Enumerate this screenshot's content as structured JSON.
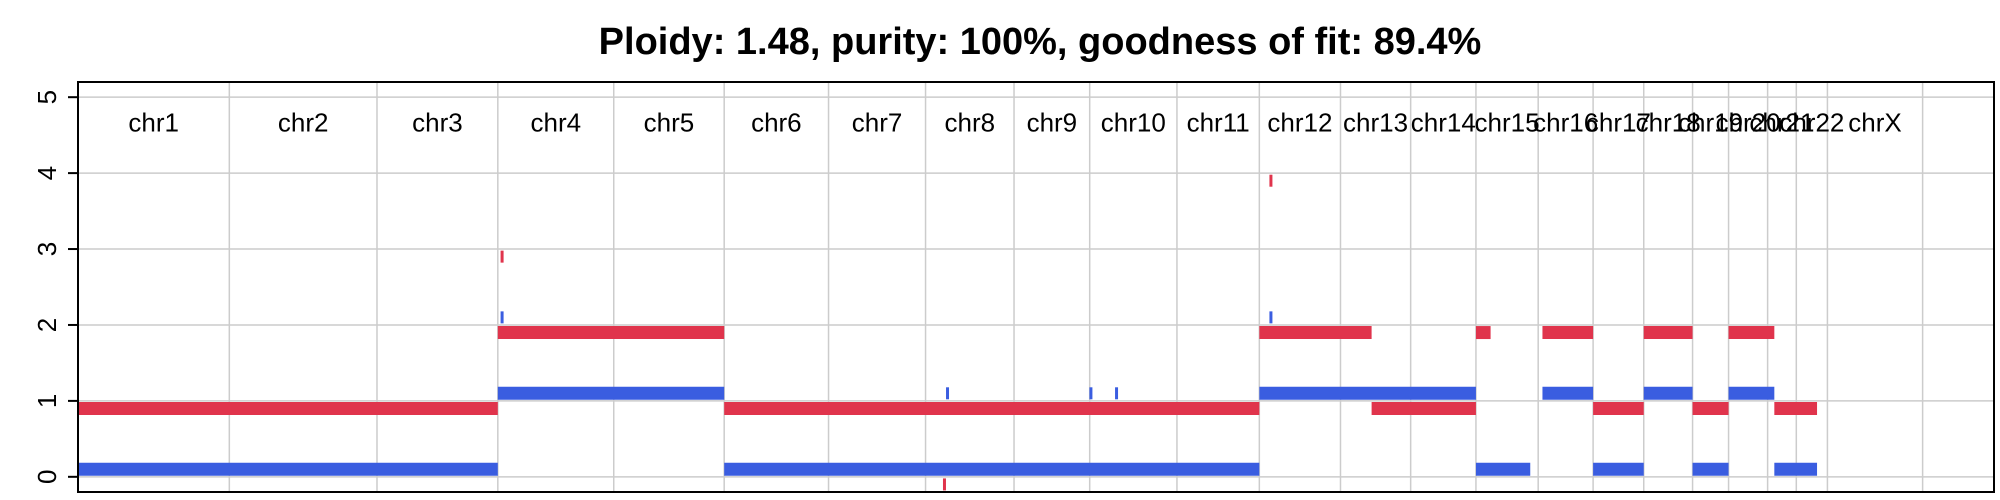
{
  "chart_data": {
    "type": "segment",
    "title": "Ploidy: 1.48, purity: 100%, goodness of fit: 89.4%",
    "xlabel": "",
    "ylabel": "",
    "ylim": [
      0,
      5
    ],
    "yticks": [
      "0",
      "1",
      "2",
      "3",
      "4",
      "5"
    ],
    "grid": true,
    "colors": {
      "major": "#e0344c",
      "minor": "#3a5de0",
      "grid": "#cccccc",
      "axis": "#000000"
    },
    "chromosomes": [
      {
        "name": "chr1",
        "start": 0,
        "end": 248
      },
      {
        "name": "chr2",
        "start": 248,
        "end": 490
      },
      {
        "name": "chr3",
        "start": 490,
        "end": 688
      },
      {
        "name": "chr4",
        "start": 688,
        "end": 878
      },
      {
        "name": "chr5",
        "start": 878,
        "end": 1059
      },
      {
        "name": "chr6",
        "start": 1059,
        "end": 1230
      },
      {
        "name": "chr7",
        "start": 1230,
        "end": 1389
      },
      {
        "name": "chr8",
        "start": 1389,
        "end": 1534
      },
      {
        "name": "chr9",
        "start": 1534,
        "end": 1658
      },
      {
        "name": "chr10",
        "start": 1658,
        "end": 1801
      },
      {
        "name": "chr11",
        "start": 1801,
        "end": 1936
      },
      {
        "name": "chr12",
        "start": 1936,
        "end": 2069
      },
      {
        "name": "chr13",
        "start": 2069,
        "end": 2184
      },
      {
        "name": "chr14",
        "start": 2184,
        "end": 2291
      },
      {
        "name": "chr15",
        "start": 2291,
        "end": 2393
      },
      {
        "name": "chr16",
        "start": 2393,
        "end": 2483
      },
      {
        "name": "chr17",
        "start": 2483,
        "end": 2566
      },
      {
        "name": "chr18",
        "start": 2566,
        "end": 2646
      },
      {
        "name": "chr19",
        "start": 2646,
        "end": 2705
      },
      {
        "name": "chr20",
        "start": 2705,
        "end": 2769
      },
      {
        "name": "chr21",
        "start": 2769,
        "end": 2816
      },
      {
        "name": "chr22",
        "start": 2816,
        "end": 2867
      },
      {
        "name": "chrX",
        "start": 2867,
        "end": 3023
      }
    ],
    "series": [
      {
        "role": "major",
        "segments": [
          {
            "start": 0,
            "end": 688,
            "value": 0.9
          },
          {
            "start": 688,
            "end": 1059,
            "value": 1.9
          },
          {
            "start": 1059,
            "end": 1936,
            "value": 0.9
          },
          {
            "start": 1936,
            "end": 2120,
            "value": 1.9
          },
          {
            "start": 2120,
            "end": 2291,
            "value": 0.9
          },
          {
            "start": 2291,
            "end": 2315,
            "value": 1.9
          },
          {
            "start": 2400,
            "end": 2483,
            "value": 1.9
          },
          {
            "start": 2483,
            "end": 2566,
            "value": 0.9
          },
          {
            "start": 2566,
            "end": 2646,
            "value": 1.9
          },
          {
            "start": 2646,
            "end": 2705,
            "value": 0.9
          },
          {
            "start": 2705,
            "end": 2780,
            "value": 1.9
          },
          {
            "start": 2780,
            "end": 2850,
            "value": 0.9
          }
        ],
        "spikes": [
          {
            "x": 695,
            "value": 2.9
          },
          {
            "x": 1955,
            "value": 3.9
          },
          {
            "x": 1420,
            "value": -0.1
          }
        ]
      },
      {
        "role": "minor",
        "segments": [
          {
            "start": 0,
            "end": 688,
            "value": 0.1
          },
          {
            "start": 688,
            "end": 1059,
            "value": 1.1
          },
          {
            "start": 1059,
            "end": 1936,
            "value": 0.1
          },
          {
            "start": 1936,
            "end": 2291,
            "value": 1.1
          },
          {
            "start": 2291,
            "end": 2380,
            "value": 0.1
          },
          {
            "start": 2400,
            "end": 2483,
            "value": 1.1
          },
          {
            "start": 2483,
            "end": 2566,
            "value": 0.1
          },
          {
            "start": 2566,
            "end": 2646,
            "value": 1.1
          },
          {
            "start": 2646,
            "end": 2705,
            "value": 0.1
          },
          {
            "start": 2705,
            "end": 2780,
            "value": 1.1
          },
          {
            "start": 2780,
            "end": 2850,
            "value": 0.1
          }
        ],
        "spikes": [
          {
            "x": 695,
            "value": 2.1
          },
          {
            "x": 1955,
            "value": 2.1
          },
          {
            "x": 1425,
            "value": 1.1
          },
          {
            "x": 1660,
            "value": 1.1
          },
          {
            "x": 1702,
            "value": 1.1
          }
        ]
      }
    ]
  }
}
